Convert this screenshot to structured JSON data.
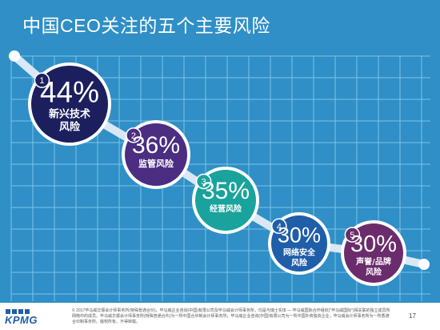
{
  "title": "中国CEO关注的五个主要风险",
  "colors": {
    "background": "#2f8fc6",
    "grid": "#7cc3e8",
    "path": "#d9e8f4",
    "ring": "#ffffff"
  },
  "chart_data": {
    "type": "bubble-ranking",
    "title": "中国CEO关注的五个主要风险",
    "unit": "%",
    "items": [
      {
        "rank": "1",
        "value": 44,
        "label_lines": [
          "新兴技术",
          "风险"
        ],
        "color": "#1c1f5e"
      },
      {
        "rank": "2",
        "value": 36,
        "label_lines": [
          "监管风险"
        ],
        "color": "#4b2d82"
      },
      {
        "rank": "3",
        "value": 35,
        "label_lines": [
          "经营风险"
        ],
        "color": "#19a39c"
      },
      {
        "rank": "4",
        "value": 30,
        "label_lines": [
          "网络安全",
          "风险"
        ],
        "color": "#1f5ea8"
      },
      {
        "rank": "5",
        "value": 30,
        "label_lines": [
          "声誉/品牌",
          "风险"
        ],
        "color": "#6b2c6b"
      }
    ]
  },
  "footer": {
    "logo": "KPMG",
    "note": "© 2017毕马威华振会计师事务所(特殊普通合伙)，毕马威企业咨询(中国)有限公司及毕马威会计师事务所，均是与瑞士实体 — 毕马威国际合作组织(\"毕马威国际\")相关联的独立成员所网络中的成员。毕马威华振会计师事务所(特殊普通合伙)为一所中国合伙制会计师事务所；毕马威企业咨询(中国)有限公司为一所中国外商独资企业；毕马威会计师事务所为一所香港合伙制事务所。版权所有，不得转载。",
    "page": "17"
  }
}
